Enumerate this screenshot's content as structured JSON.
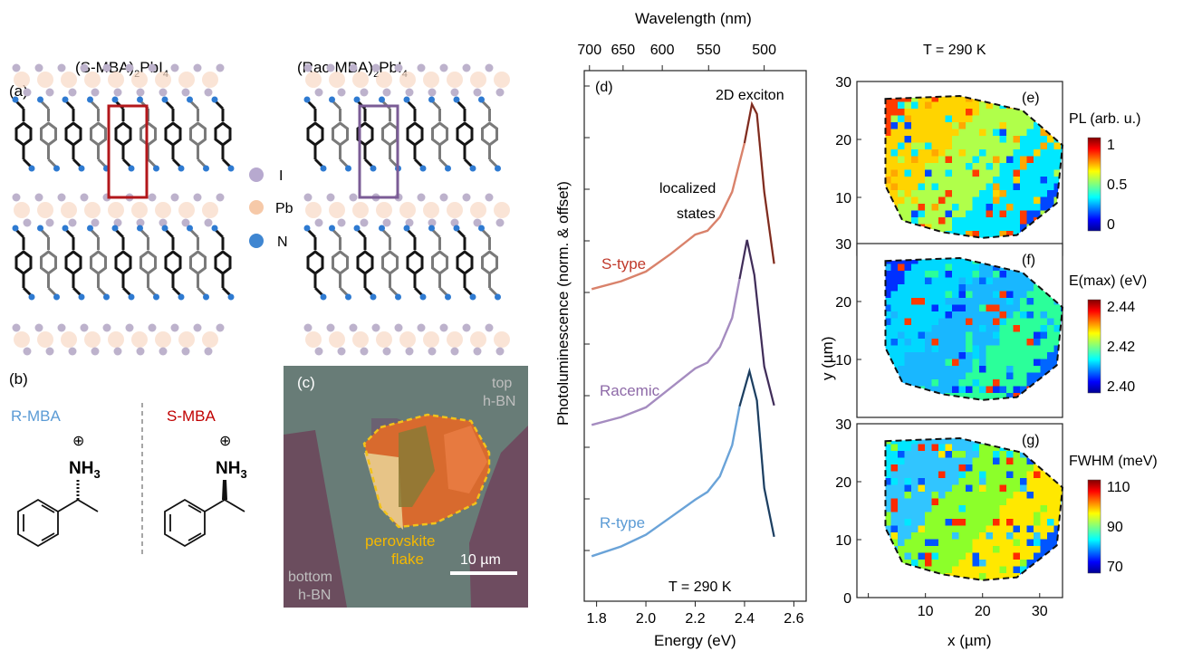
{
  "panel_a": {
    "tag": "(a)",
    "title_left": "(S-MBA)",
    "title_left_sub": "2",
    "title_left_tail": "PbI",
    "title_left_sub2": "4",
    "title_right": "(Rac-MBA)",
    "title_right_sub": "2",
    "title_right_tail": "PbI",
    "title_right_sub2": "4",
    "legend": [
      {
        "label": "I",
        "color": "#b7a9cf"
      },
      {
        "label": "Pb",
        "color": "#f6c9a8"
      },
      {
        "label": "N",
        "color": "#3f86d1"
      }
    ],
    "highlight_left_color": "#b3171b",
    "highlight_right_color": "#7b5c96"
  },
  "panel_b": {
    "tag": "(b)",
    "r_label": "R-MBA",
    "s_label": "S-MBA",
    "r_color": "#5b9bd5",
    "s_color": "#c00000",
    "nh3": "NH",
    "nh3_sub": "3",
    "plus": "⊕"
  },
  "panel_c": {
    "tag": "(c)",
    "top": "top",
    "top2": "h-BN",
    "bottom": "bottom",
    "bottom2": "h-BN",
    "flake": "perovskite",
    "flake2": "flake",
    "scalebar": "10 µm",
    "flake_label_color": "#f5b800"
  },
  "panel_d": {
    "tag": "(d)",
    "top_axis_title": "Wavelength (nm)",
    "top_ticks": [
      "700",
      "650",
      "600",
      "550",
      "500"
    ],
    "x_title": "Energy (eV)",
    "x_ticks": [
      "1.8",
      "2.0",
      "2.2",
      "2.4",
      "2.6"
    ],
    "y_title": "Photoluminescence (norm. & offset)",
    "peak_label": "2D exciton",
    "localized": "localized",
    "localized2": "states",
    "temp": "T = 290 K",
    "series": [
      {
        "name": "S-type",
        "color": "#d9826b",
        "fit": "#7a2b20"
      },
      {
        "name": "Racemic",
        "color": "#a58cc0",
        "fit": "#3e2d55"
      },
      {
        "name": "R-type",
        "color": "#6aa3d8",
        "fit": "#1f3c5a"
      }
    ]
  },
  "chart_data": {
    "type": "line",
    "xlabel": "Energy (eV)",
    "ylabel": "Photoluminescence (norm. & offset)",
    "xlim": [
      1.75,
      2.65
    ],
    "series": [
      {
        "name": "S-type",
        "x": [
          1.78,
          1.9,
          2.0,
          2.1,
          2.2,
          2.25,
          2.3,
          2.35,
          2.4,
          2.43,
          2.45,
          2.48,
          2.52
        ],
        "y": [
          0.05,
          0.09,
          0.14,
          0.23,
          0.33,
          0.35,
          0.42,
          0.55,
          0.8,
          1.0,
          0.95,
          0.55,
          0.18
        ]
      },
      {
        "name": "Racemic",
        "x": [
          1.78,
          1.9,
          2.0,
          2.1,
          2.2,
          2.25,
          2.3,
          2.35,
          2.38,
          2.41,
          2.44,
          2.48,
          2.52
        ],
        "y": [
          0.05,
          0.09,
          0.14,
          0.24,
          0.34,
          0.37,
          0.45,
          0.6,
          0.8,
          1.0,
          0.82,
          0.35,
          0.15
        ]
      },
      {
        "name": "R-type",
        "x": [
          1.78,
          1.9,
          2.0,
          2.1,
          2.2,
          2.25,
          2.3,
          2.35,
          2.38,
          2.42,
          2.45,
          2.48,
          2.52
        ],
        "y": [
          0.05,
          0.1,
          0.16,
          0.25,
          0.34,
          0.38,
          0.46,
          0.62,
          0.82,
          1.0,
          0.85,
          0.4,
          0.15
        ]
      }
    ]
  },
  "maps": {
    "title": "T = 290 K",
    "x_title": "x (µm)",
    "y_title": "y (µm)",
    "x_ticks": [
      "0",
      "10",
      "20",
      "30"
    ],
    "y_ticks": [
      "0",
      "10",
      "20",
      "30"
    ],
    "y_ticks_small": [
      "10",
      "20",
      "30"
    ],
    "panels": [
      {
        "tag": "(e)",
        "cb_title": "PL (arb. u.)",
        "cb_ticks": [
          "1",
          "0.5",
          "0"
        ]
      },
      {
        "tag": "(f)",
        "cb_title": "E(max) (eV)",
        "cb_ticks": [
          "2.44",
          "2.42",
          "2.40"
        ]
      },
      {
        "tag": "(g)",
        "cb_title": "FWHM (meV)",
        "cb_ticks": [
          "110",
          "90",
          "70"
        ]
      }
    ]
  }
}
